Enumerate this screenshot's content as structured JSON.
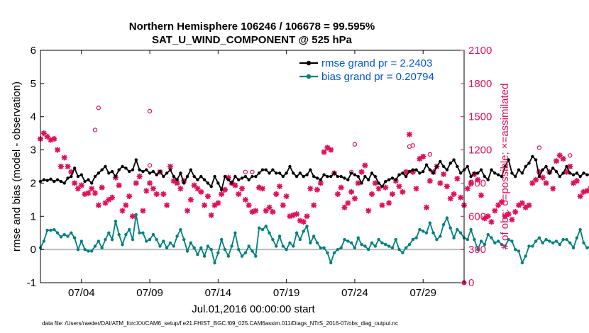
{
  "chart_data": {
    "type": "line",
    "title": "Northern Hemisphere 106246 / 106678 = 99.595%",
    "subtitle": "SAT_U_WIND_COMPONENT @ 525 hPa",
    "xlabel": "Jul.01,2016 00:00:00 start",
    "ylabel_left": "rmse and bias (model - observation)",
    "ylabel_right": "# of obs: o=possible; ×=assimilated",
    "footer": "data file: /Users/raeder/DAI/ATM_forcXX/CAM6_setup/f.e21.FHIST_BGC.f09_025.CAM6assim.011/Diags_NTrS_2016-07/obs_diag_output.nc",
    "xlim": [
      1,
      32
    ],
    "ylim_left": [
      -1,
      6
    ],
    "ylim_right": [
      0,
      2100
    ],
    "x_ticks": [
      4,
      9,
      14,
      19,
      24,
      29
    ],
    "x_tick_labels": [
      "07/04",
      "07/09",
      "07/14",
      "07/19",
      "07/24",
      "07/29"
    ],
    "y_ticks_left": [
      -1,
      0,
      1,
      2,
      3,
      4,
      5,
      6
    ],
    "y_ticks_right": [
      0,
      300,
      600,
      900,
      1200,
      1500,
      1800,
      2100
    ],
    "grid": false,
    "legend_position": "top-right",
    "colors": {
      "rmse": "#000000",
      "bias": "#008080",
      "obs": "#e0105a",
      "zero_line": "#bbbbbb"
    },
    "time_start": 1.0,
    "time_step": 0.25,
    "series": [
      {
        "name": "rmse grand pr = 2.2403",
        "axis": "left",
        "values": [
          2.05,
          2.1,
          2.08,
          2.12,
          2.05,
          2.1,
          2.05,
          2.0,
          2.15,
          2.2,
          2.45,
          2.2,
          2.25,
          2.05,
          2.1,
          2.0,
          2.2,
          2.3,
          2.4,
          2.5,
          2.3,
          2.35,
          2.2,
          2.4,
          2.5,
          2.45,
          2.35,
          2.4,
          2.7,
          2.4,
          2.35,
          2.4,
          2.3,
          2.35,
          2.25,
          2.35,
          2.2,
          2.3,
          2.4,
          2.2,
          2.1,
          2.3,
          2.0,
          2.2,
          2.4,
          2.2,
          2.1,
          2.2,
          2.1,
          2.0,
          1.9,
          2.2,
          2.0,
          1.8,
          2.2,
          2.1,
          2.0,
          2.2,
          2.1,
          2.15,
          2.2,
          2.1,
          2.2,
          2.2,
          2.3,
          2.4,
          2.4,
          2.3,
          2.4,
          2.3,
          2.3,
          2.2,
          2.3,
          2.5,
          2.3,
          2.2,
          2.3,
          2.2,
          2.25,
          2.4,
          2.2,
          2.15,
          2.1,
          2.25,
          2.2,
          2.2,
          2.3,
          2.2,
          2.2,
          2.15,
          2.1,
          2.3,
          2.25,
          2.2,
          2.0,
          2.2,
          2.1,
          2.3,
          2.2,
          2.0,
          1.9,
          2.05,
          2.1,
          2.15,
          2.1,
          2.25,
          2.3,
          2.2,
          2.35,
          2.4,
          2.4,
          2.3,
          2.35,
          2.55,
          2.4,
          2.3,
          2.5,
          2.65,
          2.5,
          2.4,
          2.6,
          2.7,
          2.5,
          2.3,
          2.4,
          2.5,
          2.2,
          2.3,
          2.3,
          2.4,
          2.2,
          2.1,
          2.4,
          2.3,
          2.25,
          2.2,
          2.5,
          2.7,
          2.3,
          2.2,
          2.4,
          2.3,
          2.5,
          2.6,
          2.8,
          2.7,
          2.2,
          2.4,
          2.5,
          2.3,
          2.45,
          2.35,
          2.2,
          2.3,
          2.5,
          2.3,
          2.25,
          2.3,
          2.2,
          2.3,
          2.25,
          2.25,
          1.95,
          2.15,
          2.2,
          2.15,
          2.3,
          2.2,
          2.2,
          2.3,
          2.35,
          2.4,
          2.3,
          2.35,
          2.4,
          2.3,
          2.3,
          2.25,
          2.2,
          2.3,
          2.2,
          2.3,
          2.15,
          2.2,
          2.2,
          2.1,
          2.2,
          2.35,
          2.2,
          2.2,
          2.35,
          2.4,
          2.4,
          2.5,
          2.35,
          2.2,
          2.3,
          2.6,
          2.1,
          2.0,
          2.15,
          2.1,
          2.15,
          2.1,
          2.1,
          2.15,
          2.1
        ]
      },
      {
        "name": "bias grand pr = 0.20794",
        "axis": "left",
        "values": [
          0.05,
          0.25,
          0.58,
          0.58,
          0.6,
          0.5,
          0.38,
          0.45,
          0.4,
          0.5,
          0.35,
          0.0,
          0.25,
          0.0,
          -0.05,
          -0.05,
          0.1,
          0.25,
          0.05,
          0.3,
          0.5,
          0.3,
          0.85,
          0.45,
          0.15,
          0.45,
          0.6,
          0.3,
          1.05,
          0.5,
          0.5,
          0.25,
          0.3,
          0.45,
          0.3,
          0.1,
          0.25,
          0.05,
          0.2,
          0.1,
          0.4,
          0.6,
          0.3,
          -0.05,
          0.2,
          0.05,
          -0.15,
          0.05,
          -0.2,
          0.1,
          0.0,
          -0.4,
          -0.1,
          0.3,
          0.0,
          -0.2,
          0.1,
          0.5,
          0.0,
          -0.2,
          -0.1,
          0.1,
          -0.05,
          -0.2,
          0.65,
          0.6,
          0.7,
          0.5,
          0.3,
          0.1,
          0.4,
          0.1,
          0.0,
          0.2,
          0.1,
          0.5,
          0.3,
          0.55,
          0.7,
          0.2,
          0.4,
          0.2,
          0.05,
          0.05,
          -0.1,
          -0.4,
          -0.1,
          0.0,
          0.05,
          0.3,
          0.25,
          0.2,
          0.05,
          0.35,
          0.15,
          0.1,
          0.0,
          0.2,
          0.1,
          0.3,
          0.2,
          0.15,
          0.1,
          0.05,
          0.3,
          0.0,
          -0.1,
          0.05,
          0.15,
          0.3,
          0.35,
          0.6,
          0.55,
          0.5,
          0.8,
          0.5,
          0.3,
          0.4,
          0.75,
          0.95,
          0.65,
          0.35,
          0.6,
          0.5,
          0.35,
          0.3,
          0.6,
          0.3,
          0.0,
          0.25,
          0.15,
          0.45,
          0.35,
          0.2,
          0.25,
          0.15,
          0.1,
          0.3,
          0.25,
          0.0,
          -0.05,
          -0.4,
          -0.2,
          0.1,
          0.1,
          0.25,
          0.35,
          0.2,
          0.3,
          0.25,
          0.2,
          0.25,
          0.15,
          0.3,
          0.3,
          0.2,
          0.05,
          0.35,
          0.6,
          0.2,
          0.05,
          0.1,
          0.2,
          0.0,
          0.25,
          0.3,
          0.35,
          0.3,
          0.2,
          0.4,
          0.2,
          0.3,
          0.45,
          0.3,
          0.2,
          0.35,
          0.6,
          0.5,
          0.4,
          0.45,
          0.3,
          0.3,
          0.45,
          0.2,
          0.25,
          0.1,
          0.15,
          0.05,
          0.25,
          0.05,
          0.1,
          0.0,
          0.3,
          0.5,
          0.2,
          0.1,
          0.05,
          0.0,
          0.25,
          0.2,
          0.05,
          0.1,
          0.55,
          0.0
        ]
      },
      {
        "name": "obs assimilated",
        "axis": "right",
        "marker": "x",
        "values": [
          1300,
          1350,
          1320,
          1290,
          1300,
          1200,
          1050,
          1130,
          1050,
          1000,
          900,
          850,
          880,
          800,
          810,
          850,
          810,
          700,
          860,
          720,
          750,
          770,
          950,
          880,
          650,
          700,
          780,
          600,
          900,
          960,
          650,
          830,
          900,
          850,
          800,
          1000,
          800,
          700,
          1050,
          920,
          900,
          850,
          920,
          650,
          750,
          880,
          850,
          820,
          700,
          780,
          610,
          700,
          720,
          800,
          840,
          950,
          900,
          880,
          800,
          850,
          750,
          700,
          640,
          650,
          860,
          850,
          650,
          680,
          640,
          800,
          870,
          700,
          780,
          600,
          610,
          620,
          560,
          550,
          600,
          850,
          700,
          840,
          900,
          1180,
          1220,
          1200,
          990,
          800,
          860,
          680,
          720,
          820,
          760,
          900,
          1000,
          1060,
          650,
          800,
          900,
          850,
          700,
          860,
          720,
          800,
          920,
          870,
          820,
          1000,
          1340,
          1000,
          850,
          1120,
          1140,
          680,
          920,
          1000,
          1050,
          900,
          980,
          870,
          760,
          800,
          940,
          770,
          700,
          850,
          900,
          980,
          930,
          790,
          580,
          600,
          550,
          650,
          700,
          730,
          600,
          620,
          570,
          640,
          700,
          720,
          680,
          700,
          900,
          930,
          1000,
          950,
          900,
          1000,
          850,
          1100,
          1150,
          1120,
          1000,
          1050,
          900,
          920,
          780,
          820,
          830,
          850,
          900,
          1050,
          1080,
          1100,
          800,
          680,
          650,
          750,
          800,
          820,
          900,
          840,
          820,
          800,
          760,
          740,
          720,
          700,
          710,
          880,
          900,
          950,
          880,
          1000,
          920,
          1000,
          950,
          1100,
          1150,
          1000,
          900,
          800,
          820,
          760,
          700,
          650
        ]
      },
      {
        "name": "obs possible",
        "axis": "right",
        "marker": "o",
        "values": [
          1380,
          1580,
          1060,
          1550,
          1000,
          1000,
          1000,
          1250,
          1230,
          1240,
          1160,
          1220,
          1150,
          1110,
          1060,
          1020,
          1150,
          1100
        ]
      }
    ]
  }
}
